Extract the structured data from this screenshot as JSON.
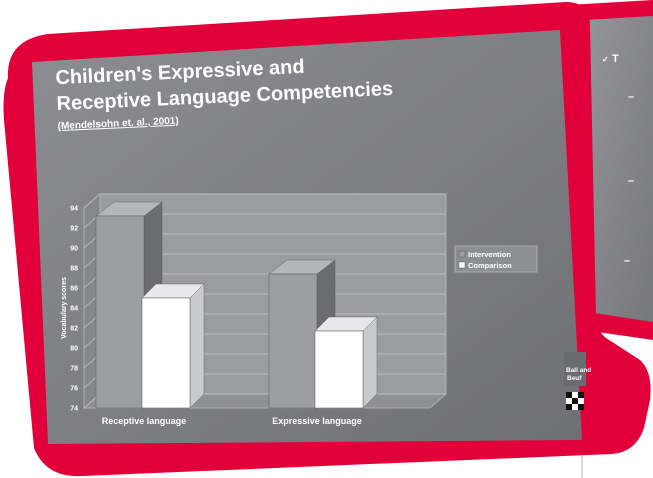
{
  "slide": {
    "title_line1": "Children's Expressive and",
    "title_line2": "Receptive Language Competencies",
    "subtitle": "(Mendelsohn et. al., 2001)"
  },
  "second_slide": {
    "bullet": "T",
    "dash": "–"
  },
  "logo": {
    "line1": "Ball and",
    "line2": "Beuf"
  },
  "colors": {
    "frame": "#e2003a",
    "slide_bg": "#7f8084",
    "intervention_bar": "#9c9ea2",
    "comparison_bar": "#ffffff"
  },
  "chart_data": {
    "type": "bar",
    "categories": [
      "Receptive language",
      "Expressive language"
    ],
    "series": [
      {
        "name": "Intervention",
        "values": [
          93.2,
          87.4
        ]
      },
      {
        "name": "Comparison",
        "values": [
          85.0,
          81.7
        ]
      }
    ],
    "ylabel": "Vocabulary scores",
    "ylim": [
      74,
      94
    ],
    "yticks": [
      74,
      76,
      78,
      80,
      82,
      84,
      86,
      88,
      90,
      92,
      94
    ],
    "legend_position": "right",
    "grid": true,
    "style": "3d"
  }
}
